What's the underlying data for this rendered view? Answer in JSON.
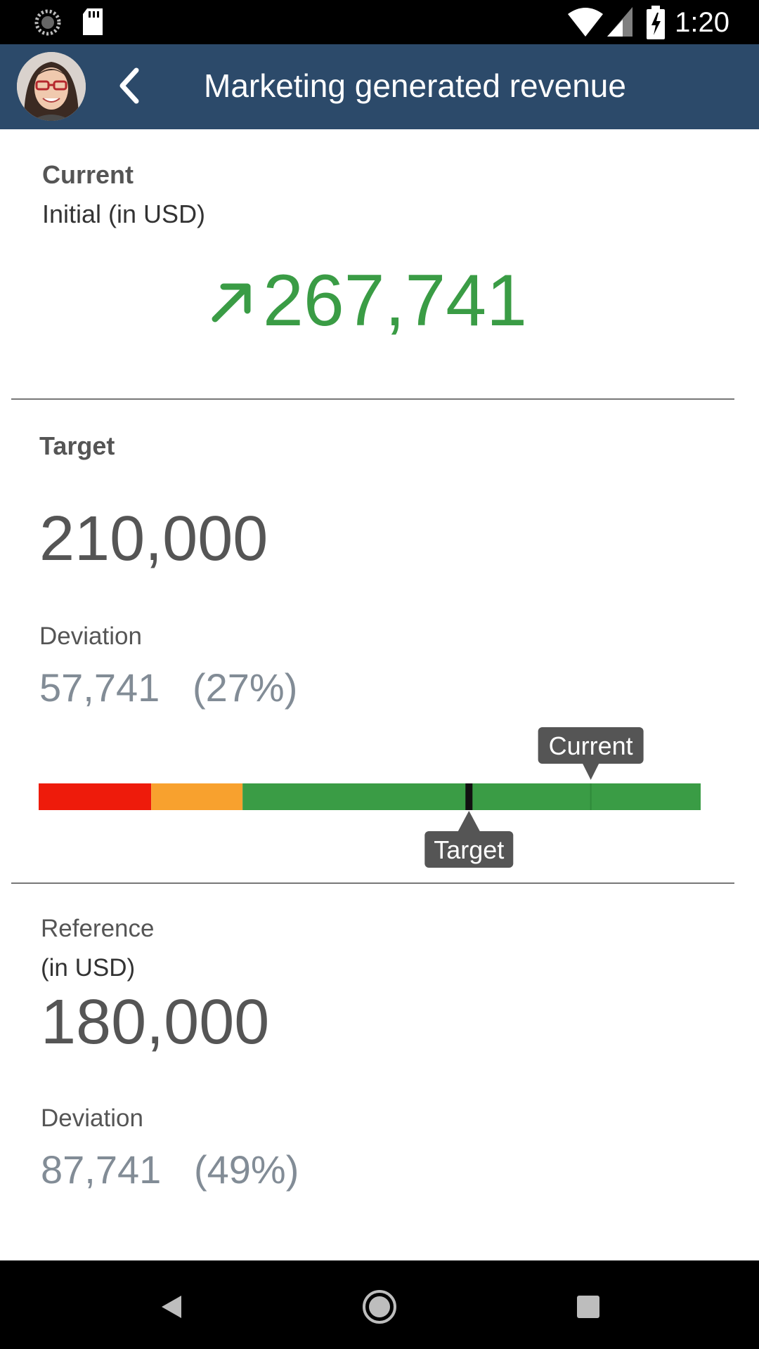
{
  "status_bar": {
    "time": "1:20",
    "icons": [
      "sync-icon",
      "sd-card-icon",
      "wifi-icon",
      "signal-icon",
      "battery-charging-icon"
    ]
  },
  "header": {
    "title": "Marketing generated revenue",
    "back_icon": "chevron-left-icon",
    "avatar": "user-avatar"
  },
  "current": {
    "label": "Current",
    "sublabel": "Initial (in USD)",
    "value": "267,741",
    "trend_icon": "arrow-up-right-icon",
    "color": "#3a9c45"
  },
  "target": {
    "label": "Target",
    "value": "210,000",
    "deviation_label": "Deviation",
    "deviation_value": "57,741",
    "deviation_percent": "(27%)"
  },
  "bullet_chart": {
    "target_label": "Target",
    "current_label": "Current",
    "bands": [
      {
        "color": "#ee1b0b",
        "from": 0,
        "to": 0.17
      },
      {
        "color": "#f8a12e",
        "from": 0.17,
        "to": 0.308
      },
      {
        "color": "#3a9c45",
        "from": 0.308,
        "to": 1.0
      }
    ],
    "target_position": 0.65,
    "current_position": 0.834
  },
  "reference": {
    "label": "Reference",
    "sublabel": "(in USD)",
    "value": "180,000",
    "deviation_label": "Deviation",
    "deviation_value": "87,741",
    "deviation_percent": "(49%)"
  },
  "nav": {
    "icons": [
      "back-triangle-icon",
      "home-circle-icon",
      "recents-square-icon"
    ]
  }
}
